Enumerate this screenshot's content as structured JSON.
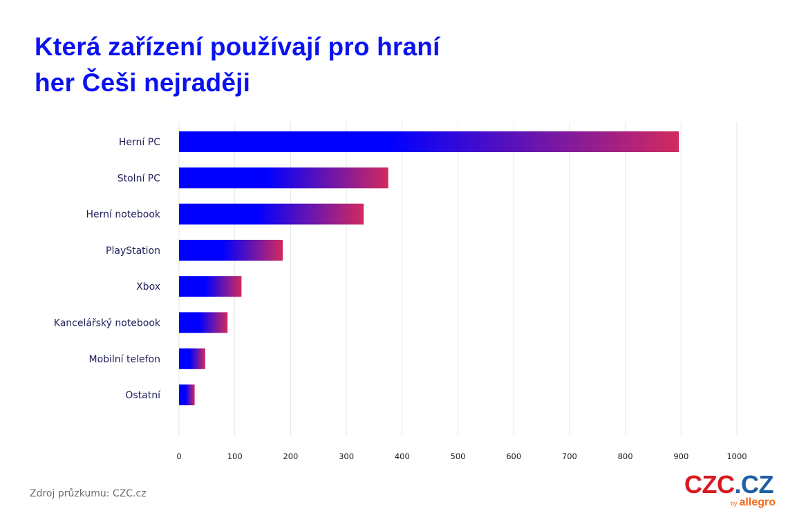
{
  "header": {
    "title_line1": "Která zařízení používají pro hraní",
    "title_line2": "her Češi nejraději"
  },
  "footer": {
    "source": "Zdroj průzkumu: CZC.cz",
    "logo": {
      "main_czc": "CZC",
      "main_dot": ".",
      "main_cz": "CZ",
      "by": "by",
      "allegro": "allegro"
    }
  },
  "colors": {
    "title": "#0A12F0",
    "bar_start": "#0000FF",
    "bar_end": "#D12A5E",
    "grid": "#E6E6E6",
    "logo_red": "#D71A21",
    "logo_blue": "#1F5FA6",
    "logo_orange": "#F26A1B"
  },
  "chart_data": {
    "type": "bar",
    "orientation": "horizontal",
    "title": "Která zařízení používají pro hraní her Češi nejraději",
    "xlabel": "",
    "ylabel": "",
    "categories": [
      "Herní PC",
      "Stolní PC",
      "Herní notebook",
      "PlayStation",
      "Xbox",
      "Kancelářský notebook",
      "Mobilní telefon",
      "Ostatní"
    ],
    "values": [
      896,
      375,
      331,
      186,
      112,
      87,
      47,
      28
    ],
    "xlim": [
      0,
      1000
    ],
    "xticks": [
      0,
      100,
      200,
      300,
      400,
      500,
      600,
      700,
      800,
      900,
      1000
    ],
    "xtick_labels": [
      "0",
      "100",
      "200",
      "300",
      "400",
      "500",
      "600",
      "700",
      "800",
      "900",
      "1000"
    ],
    "grid": true,
    "legend": "none"
  }
}
